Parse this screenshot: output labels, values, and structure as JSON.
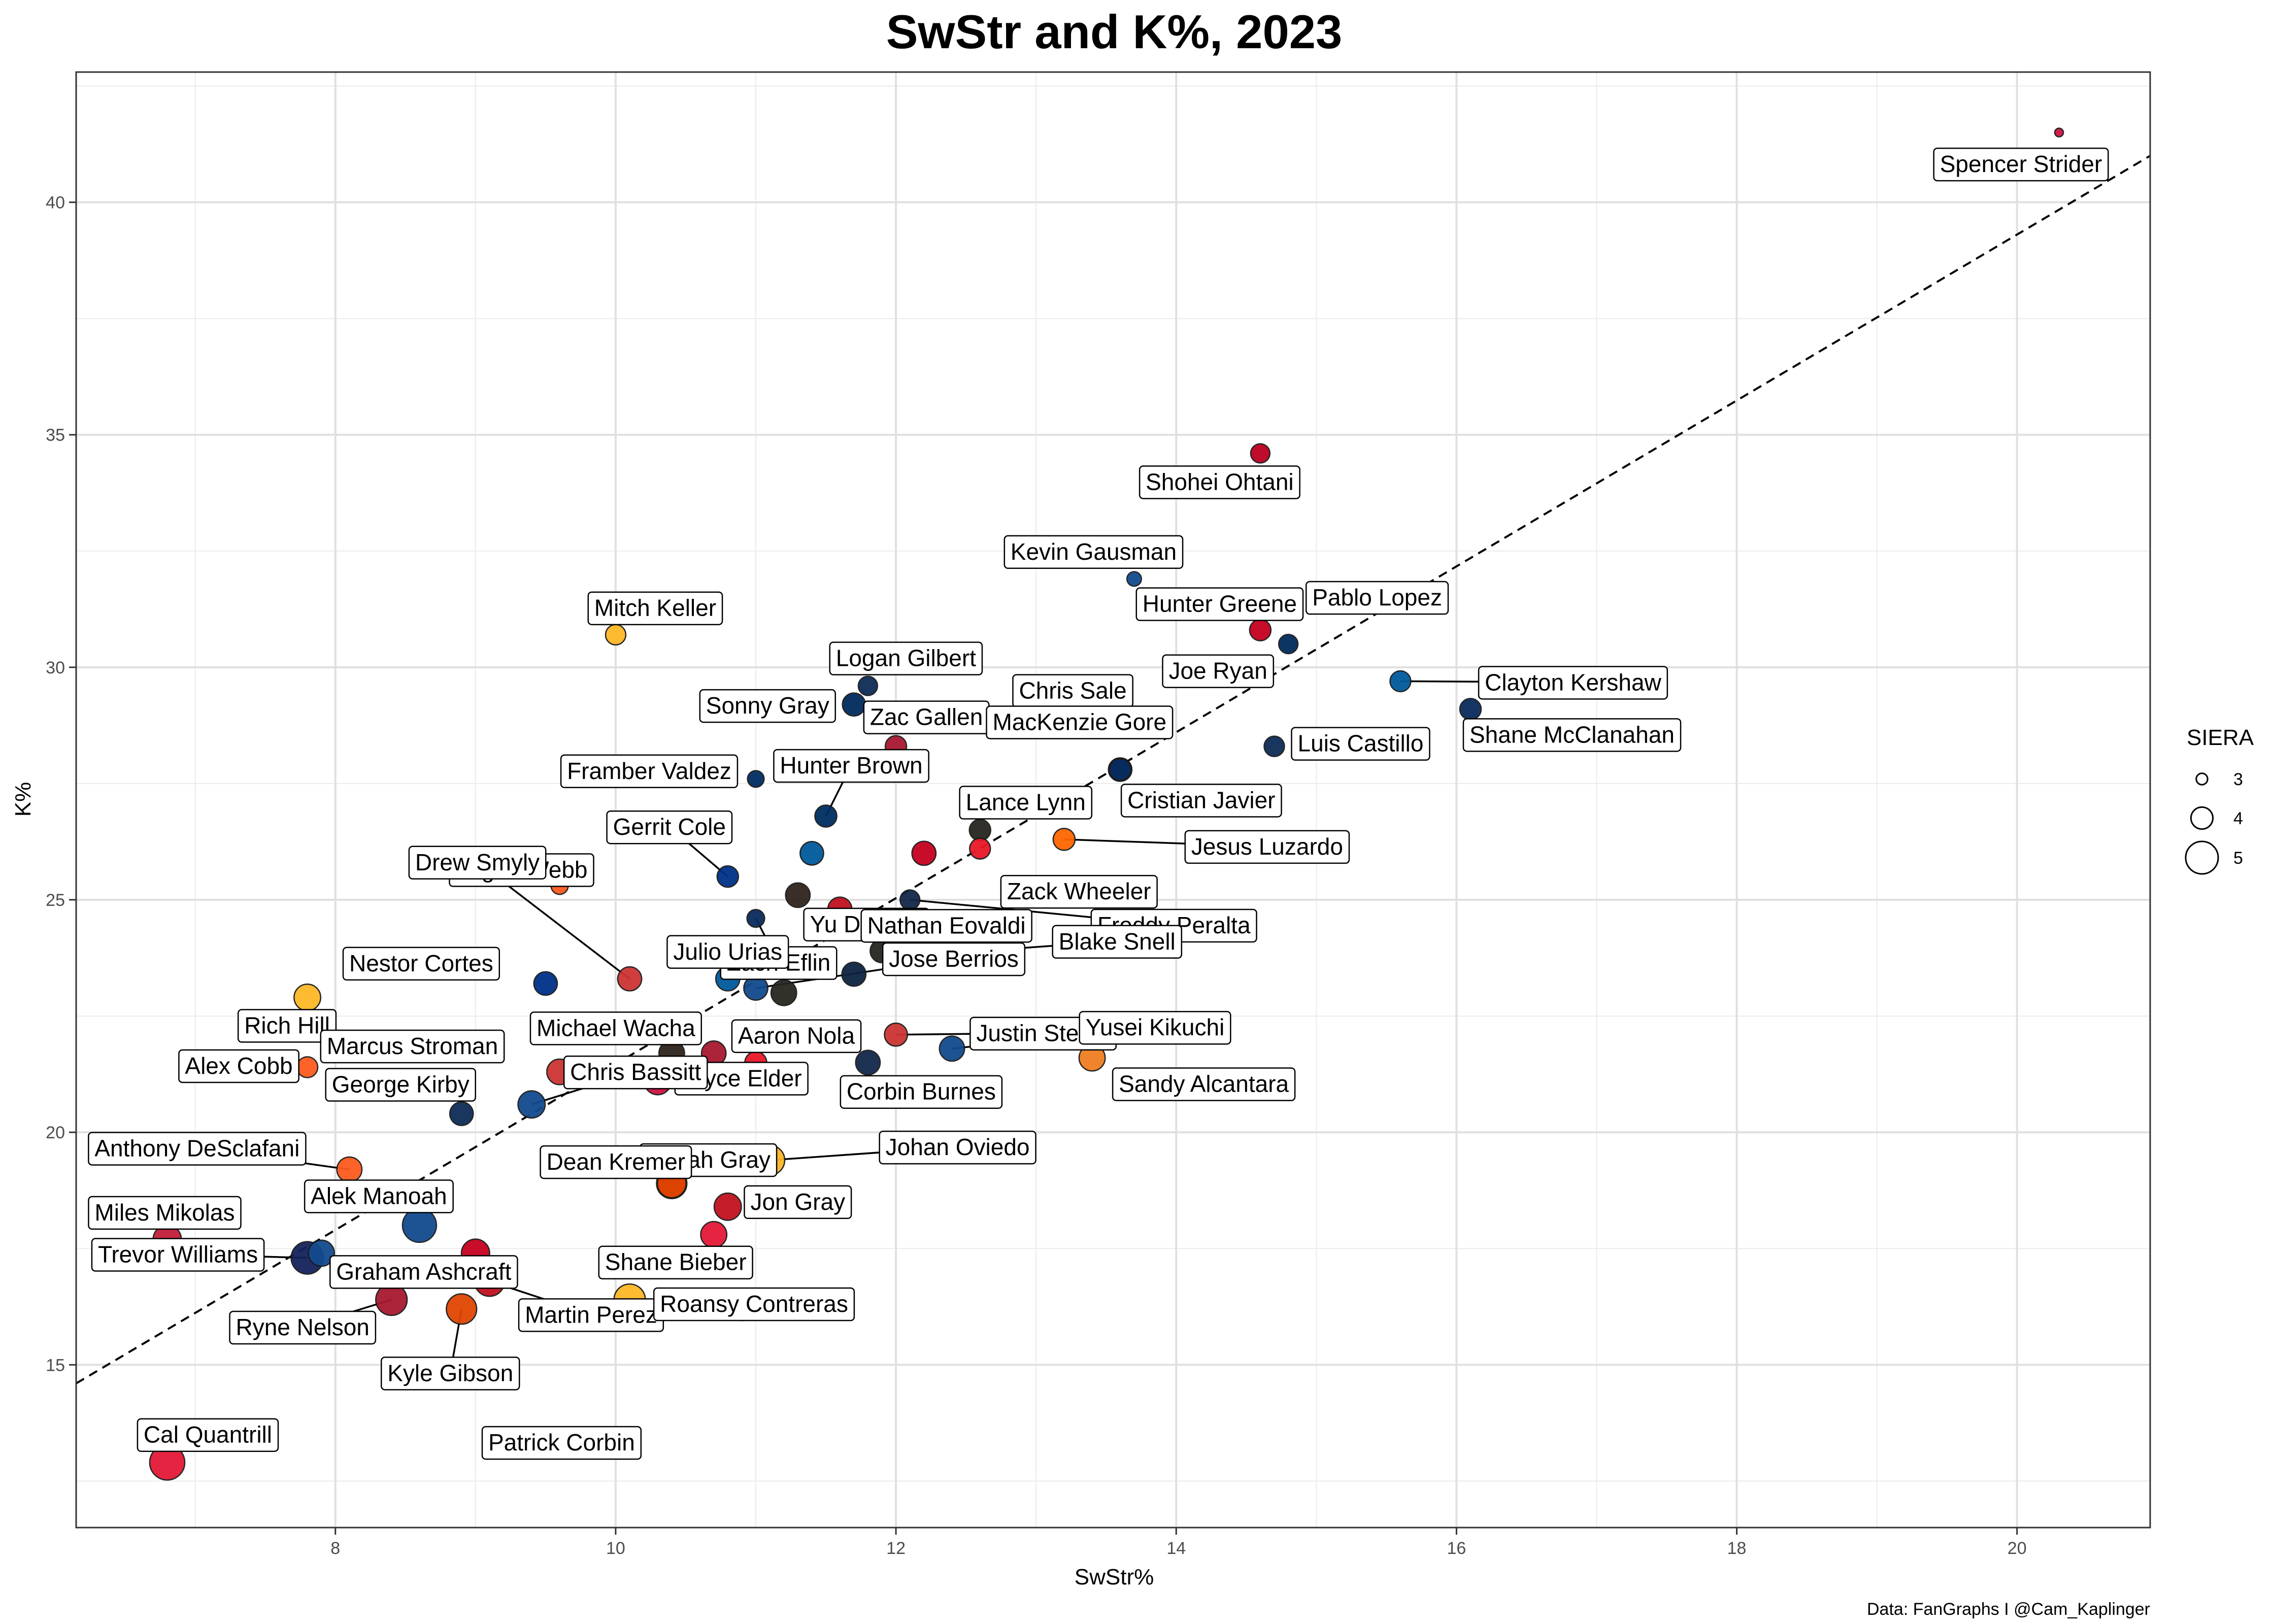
{
  "chart_data": {
    "type": "scatter",
    "title": "SwStr and K%, 2023",
    "xlabel": "SwStr%",
    "ylabel": "K%",
    "xlim": [
      6.15,
      20.95
    ],
    "ylim": [
      11.5,
      42.8
    ],
    "x_ticks": [
      8,
      10,
      12,
      14,
      16,
      18,
      20
    ],
    "y_ticks": [
      15,
      20,
      25,
      30,
      35,
      40
    ],
    "grid": true,
    "reference_line": {
      "style": "dashed",
      "from": [
        6.15,
        14.6
      ],
      "to": [
        20.95,
        41.0
      ]
    },
    "legend": {
      "title": "SIERA",
      "placement": "right",
      "values": [
        3,
        4,
        5
      ]
    },
    "caption": "Data: FanGraphs I @Cam_Kaplinger",
    "points": [
      {
        "name": "Spencer Strider",
        "x": 20.3,
        "y": 41.5,
        "siera": 2.55,
        "color": "#ce1141",
        "labeled": true
      },
      {
        "name": "Shohei Ohtani",
        "x": 14.6,
        "y": 34.6,
        "siera": 3.55,
        "color": "#ba0021",
        "labeled": true
      },
      {
        "name": "Kevin Gausman",
        "x": 13.7,
        "y": 31.9,
        "siera": 3.1,
        "color": "#134a8e",
        "labeled": true
      },
      {
        "name": "Hunter Greene",
        "x": 14.6,
        "y": 30.8,
        "siera": 3.75,
        "color": "#c6011f",
        "labeled": true
      },
      {
        "name": "Pablo Lopez",
        "x": 14.8,
        "y": 30.5,
        "siera": 3.55,
        "color": "#002b5c",
        "labeled": true
      },
      {
        "name": "Clayton Kershaw",
        "x": 15.6,
        "y": 29.7,
        "siera": 3.7,
        "color": "#005a9c",
        "labeled": true
      },
      {
        "name": "Shane McClanahan",
        "x": 16.1,
        "y": 29.1,
        "siera": 3.75,
        "color": "#092c5c",
        "labeled": true
      },
      {
        "name": "Joe Ryan",
        "x": 13.9,
        "y": 28.9,
        "siera": 3.45,
        "color": "#002b5c",
        "labeled": true
      },
      {
        "name": "Chris Sale",
        "x": 12.9,
        "y": 29.0,
        "siera": 3.6,
        "color": "#bd3039",
        "labeled": true
      },
      {
        "name": "Luis Castillo",
        "x": 14.7,
        "y": 28.3,
        "siera": 3.65,
        "color": "#0c2c56",
        "labeled": true
      },
      {
        "name": "Logan Gilbert",
        "x": 11.8,
        "y": 29.6,
        "siera": 3.55,
        "color": "#0c2c56",
        "labeled": true
      },
      {
        "name": "Sonny Gray",
        "x": 11.7,
        "y": 29.2,
        "siera": 3.9,
        "color": "#002b5c",
        "labeled": true
      },
      {
        "name": "Zac Gallen",
        "x": 12.0,
        "y": 28.3,
        "siera": 3.75,
        "color": "#a71930",
        "labeled": true
      },
      {
        "name": "MacKenzie Gore",
        "x": 13.6,
        "y": 27.8,
        "siera": 3.95,
        "color": "#ab0003",
        "labeled": true
      },
      {
        "name": "Cristian Javier",
        "x": 13.6,
        "y": 27.8,
        "siera": 3.8,
        "color": "#002d62",
        "labeled": true
      },
      {
        "name": "Mitch Keller",
        "x": 10.0,
        "y": 30.7,
        "siera": 3.65,
        "color": "#fdb827",
        "labeled": true
      },
      {
        "name": "Framber Valdez",
        "x": 11.0,
        "y": 27.6,
        "siera": 3.3,
        "color": "#002d62",
        "labeled": true
      },
      {
        "name": "Hunter Brown",
        "x": 11.5,
        "y": 26.8,
        "siera": 3.8,
        "color": "#002d62",
        "labeled": true
      },
      {
        "name": "Lance Lynn",
        "x": 12.6,
        "y": 26.5,
        "siera": 3.75,
        "color": "#27251f",
        "labeled": true
      },
      {
        "name": "Zack Wheeler",
        "x": 12.6,
        "y": 26.1,
        "siera": 3.7,
        "color": "#e81828",
        "labeled": true
      },
      {
        "name": "Jesus Luzardo",
        "x": 13.2,
        "y": 26.3,
        "siera": 3.8,
        "color": "#ff6600",
        "labeled": true
      },
      {
        "name": "Gerrit Cole",
        "x": 10.8,
        "y": 25.5,
        "siera": 3.75,
        "color": "#003087",
        "labeled": true
      },
      {
        "name": "Yu Darvish",
        "x": 11.3,
        "y": 25.1,
        "siera": 4.05,
        "color": "#2f241d",
        "labeled": true
      },
      {
        "name": "Logan Webb",
        "x": 9.6,
        "y": 25.3,
        "siera": 3.35,
        "color": "#fd5a1e",
        "labeled": true
      },
      {
        "name": "Nathan Eovaldi",
        "x": 11.6,
        "y": 24.8,
        "siera": 4.0,
        "color": "#c0111f",
        "labeled": true
      },
      {
        "name": "Freddy Peralta",
        "x": 12.1,
        "y": 25.0,
        "siera": 3.6,
        "color": "#12284b",
        "labeled": true
      },
      {
        "name": "Drew Smyly",
        "x": 10.1,
        "y": 23.3,
        "siera": 4.0,
        "color": "#cc3433",
        "labeled": true
      },
      {
        "name": "Zach Eflin",
        "x": 11.0,
        "y": 24.6,
        "siera": 3.4,
        "color": "#092c5c",
        "labeled": true
      },
      {
        "name": "Julio Urias",
        "x": 10.8,
        "y": 23.3,
        "siera": 4.0,
        "color": "#005a9c",
        "labeled": true
      },
      {
        "name": "Blake Snell",
        "x": 12.6,
        "y": 23.9,
        "siera": 4.2,
        "color": "#2f241d",
        "labeled": true
      },
      {
        "name": "Jose Berrios",
        "x": 11.0,
        "y": 23.1,
        "siera": 4.0,
        "color": "#134a8e",
        "labeled": true
      },
      {
        "name": "Nestor Cortes",
        "x": 9.5,
        "y": 23.2,
        "siera": 3.95,
        "color": "#003087",
        "labeled": true
      },
      {
        "name": "Rich Hill",
        "x": 7.8,
        "y": 22.9,
        "siera": 4.25,
        "color": "#fdb827",
        "labeled": true
      },
      {
        "name": "Michael Wacha",
        "x": 10.4,
        "y": 21.7,
        "siera": 4.15,
        "color": "#2f241d",
        "labeled": true
      },
      {
        "name": "Aaron Nola",
        "x": 11.0,
        "y": 21.5,
        "siera": 3.8,
        "color": "#e81828",
        "labeled": true
      },
      {
        "name": "Justin Steele",
        "x": 12.0,
        "y": 22.1,
        "siera": 3.9,
        "color": "#cc3433",
        "labeled": true
      },
      {
        "name": "Corbin Burnes",
        "x": 11.8,
        "y": 21.5,
        "siera": 4.05,
        "color": "#12284b",
        "labeled": true
      },
      {
        "name": "Yusei Kikuchi",
        "x": 12.4,
        "y": 21.8,
        "siera": 4.1,
        "color": "#134a8e",
        "labeled": true
      },
      {
        "name": "Sandy Alcantara",
        "x": 13.4,
        "y": 21.6,
        "siera": 4.2,
        "color": "#ef7e21",
        "labeled": true
      },
      {
        "name": "Bryce Elder",
        "x": 10.3,
        "y": 21.1,
        "siera": 4.3,
        "color": "#ce1141",
        "labeled": true
      },
      {
        "name": "Alex Cobb",
        "x": 7.8,
        "y": 21.4,
        "siera": 3.7,
        "color": "#fd5a1e",
        "labeled": true
      },
      {
        "name": "Marcus Stroman",
        "x": 9.6,
        "y": 21.3,
        "siera": 4.15,
        "color": "#cc3433",
        "labeled": true
      },
      {
        "name": "Chris Bassitt",
        "x": 9.4,
        "y": 20.6,
        "siera": 4.3,
        "color": "#134a8e",
        "labeled": true
      },
      {
        "name": "George Kirby",
        "x": 8.9,
        "y": 20.4,
        "siera": 3.95,
        "color": "#0c2c56",
        "labeled": true
      },
      {
        "name": "Anthony DeSclafani",
        "x": 8.1,
        "y": 19.2,
        "siera": 4.1,
        "color": "#fd5a1e",
        "labeled": true
      },
      {
        "name": "Josiah Gray",
        "x": 10.4,
        "y": 18.9,
        "siera": 4.6,
        "color": "#ab0003",
        "labeled": true
      },
      {
        "name": "Johan Oviedo",
        "x": 11.1,
        "y": 19.4,
        "siera": 4.55,
        "color": "#fdb827",
        "labeled": true
      },
      {
        "name": "Dean Kremer",
        "x": 10.4,
        "y": 18.9,
        "siera": 4.45,
        "color": "#df4601",
        "labeled": true
      },
      {
        "name": "Jon Gray",
        "x": 10.8,
        "y": 18.4,
        "siera": 4.3,
        "color": "#c0111f",
        "labeled": true
      },
      {
        "name": "Alek Manoah",
        "x": 8.6,
        "y": 18.0,
        "siera": 4.95,
        "color": "#134a8e",
        "labeled": true
      },
      {
        "name": "Miles Mikolas",
        "x": 6.8,
        "y": 17.7,
        "siera": 4.4,
        "color": "#c41e3a",
        "labeled": true
      },
      {
        "name": "Shane Bieber",
        "x": 10.7,
        "y": 17.8,
        "siera": 4.2,
        "color": "#e31937",
        "labeled": true
      },
      {
        "name": "Trevor Williams",
        "x": 7.8,
        "y": 17.3,
        "siera": 4.8,
        "color": "#14225a",
        "labeled": true
      },
      {
        "name": "Graham Ashcraft",
        "x": 9.0,
        "y": 17.4,
        "siera": 4.4,
        "color": "#c6011f",
        "labeled": true
      },
      {
        "name": "Ryne Nelson",
        "x": 8.4,
        "y": 16.4,
        "siera": 4.7,
        "color": "#a71930",
        "labeled": true
      },
      {
        "name": "Martin Perez",
        "x": 9.1,
        "y": 16.8,
        "siera": 4.6,
        "color": "#c0111f",
        "labeled": true
      },
      {
        "name": "Kyle Gibson",
        "x": 8.9,
        "y": 16.2,
        "siera": 4.6,
        "color": "#df4601",
        "labeled": true
      },
      {
        "name": "Roansy Contreras",
        "x": 10.1,
        "y": 16.4,
        "siera": 4.7,
        "color": "#fdb827",
        "labeled": true
      },
      {
        "name": "Cal Quantrill",
        "x": 6.8,
        "y": 12.9,
        "siera": 5.05,
        "color": "#e31937",
        "labeled": true
      },
      {
        "name": "Patrick Corbin",
        "x": 10.9,
        "y": 16.3,
        "siera": 4.8,
        "color": "#14225a",
        "labeled": true
      },
      {
        "name": "",
        "x": 12.2,
        "y": 26.0,
        "siera": 4.0,
        "color": "#c6011f",
        "labeled": false
      },
      {
        "name": "",
        "x": 11.2,
        "y": 23.0,
        "siera": 4.15,
        "color": "#27251f",
        "labeled": false
      },
      {
        "name": "",
        "x": 11.7,
        "y": 23.4,
        "siera": 4.0,
        "color": "#0c2340",
        "labeled": false
      },
      {
        "name": "",
        "x": 11.9,
        "y": 23.9,
        "siera": 3.95,
        "color": "#27251f",
        "labeled": false
      },
      {
        "name": "",
        "x": 11.4,
        "y": 26.0,
        "siera": 3.95,
        "color": "#005a9c",
        "labeled": false
      },
      {
        "name": "",
        "x": 10.7,
        "y": 21.7,
        "siera": 4.05,
        "color": "#a71930",
        "labeled": false
      },
      {
        "name": "",
        "x": 7.9,
        "y": 17.4,
        "siera": 4.2,
        "color": "#134a8e",
        "labeled": false
      }
    ]
  }
}
